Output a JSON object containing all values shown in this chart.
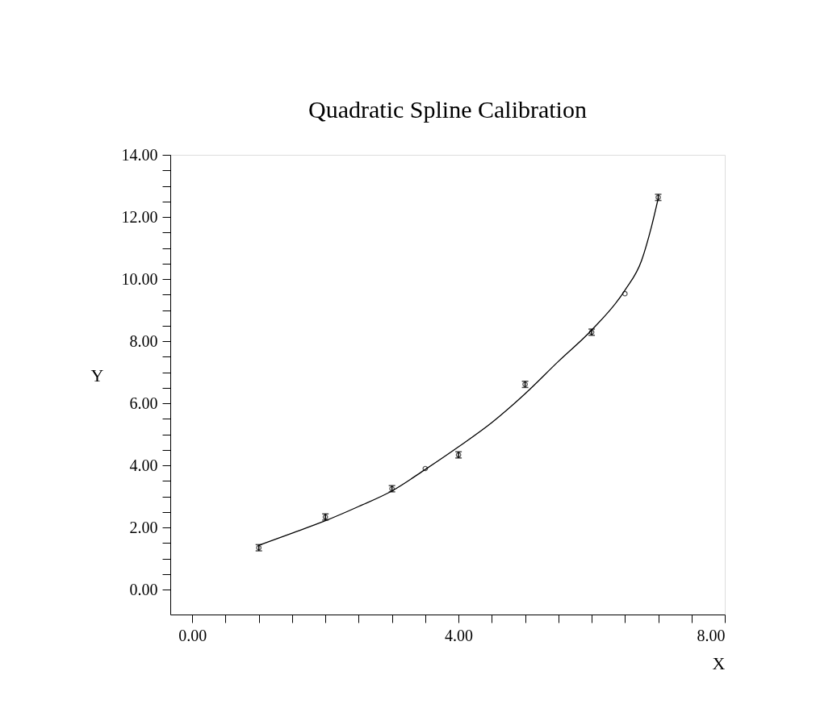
{
  "chart_data": {
    "type": "scatter",
    "title": "Quadratic Spline Calibration",
    "xlabel": "X",
    "ylabel": "Y",
    "xlim": [
      -0.33,
      8
    ],
    "ylim": [
      -0.8,
      14
    ],
    "xticks": [
      {
        "value": 0,
        "label": "0.00"
      },
      {
        "value": 0.5,
        "label": null
      },
      {
        "value": 1,
        "label": null
      },
      {
        "value": 1.5,
        "label": null
      },
      {
        "value": 2,
        "label": null
      },
      {
        "value": 2.5,
        "label": null
      },
      {
        "value": 3,
        "label": null
      },
      {
        "value": 3.5,
        "label": null
      },
      {
        "value": 4,
        "label": "4.00"
      },
      {
        "value": 4.5,
        "label": null
      },
      {
        "value": 5,
        "label": null
      },
      {
        "value": 5.5,
        "label": null
      },
      {
        "value": 6,
        "label": null
      },
      {
        "value": 6.5,
        "label": null
      },
      {
        "value": 7,
        "label": null
      },
      {
        "value": 7.5,
        "label": null
      },
      {
        "value": 8,
        "label": "8.00"
      }
    ],
    "yticks": [
      {
        "value": 0,
        "label": "0.00"
      },
      {
        "value": 0.5,
        "label": null
      },
      {
        "value": 1,
        "label": null
      },
      {
        "value": 1.5,
        "label": null
      },
      {
        "value": 2,
        "label": "2.00"
      },
      {
        "value": 2.5,
        "label": null
      },
      {
        "value": 3,
        "label": null
      },
      {
        "value": 3.5,
        "label": null
      },
      {
        "value": 4,
        "label": "4.00"
      },
      {
        "value": 4.5,
        "label": null
      },
      {
        "value": 5,
        "label": null
      },
      {
        "value": 5.5,
        "label": null
      },
      {
        "value": 6,
        "label": "6.00"
      },
      {
        "value": 6.5,
        "label": null
      },
      {
        "value": 7,
        "label": null
      },
      {
        "value": 7.5,
        "label": null
      },
      {
        "value": 8,
        "label": "8.00"
      },
      {
        "value": 8.5,
        "label": null
      },
      {
        "value": 9,
        "label": null
      },
      {
        "value": 9.5,
        "label": null
      },
      {
        "value": 10,
        "label": "10.00"
      },
      {
        "value": 10.5,
        "label": null
      },
      {
        "value": 11,
        "label": null
      },
      {
        "value": 11.5,
        "label": null
      },
      {
        "value": 12,
        "label": "12.00"
      },
      {
        "value": 12.5,
        "label": null
      },
      {
        "value": 13,
        "label": null
      },
      {
        "value": 13.5,
        "label": null
      },
      {
        "value": 14,
        "label": "14.00"
      }
    ],
    "grid": false,
    "line_style": "solid",
    "series": [
      {
        "type": "line",
        "marker": "none",
        "color": "#000000",
        "x": [
          1,
          1.5,
          2,
          2.5,
          3,
          3.5,
          4,
          4.5,
          5,
          5.5,
          6,
          6.5,
          6.75,
          6.9,
          7
        ],
        "values": [
          1.43,
          1.82,
          2.22,
          2.68,
          3.18,
          3.87,
          4.6,
          5.38,
          6.31,
          7.35,
          8.36,
          9.64,
          10.6,
          11.7,
          12.6
        ]
      },
      {
        "marker": "circle",
        "color": "#000000",
        "x": [
          1,
          2,
          3,
          3.5,
          4,
          5,
          6,
          6.5,
          7
        ],
        "values": [
          1.35,
          2.34,
          3.25,
          3.9,
          4.34,
          6.61,
          8.29,
          9.53,
          12.63
        ],
        "errors": [
          0.1,
          0.1,
          0.1,
          null,
          0.1,
          0.1,
          0.1,
          null,
          0.1
        ]
      }
    ]
  }
}
